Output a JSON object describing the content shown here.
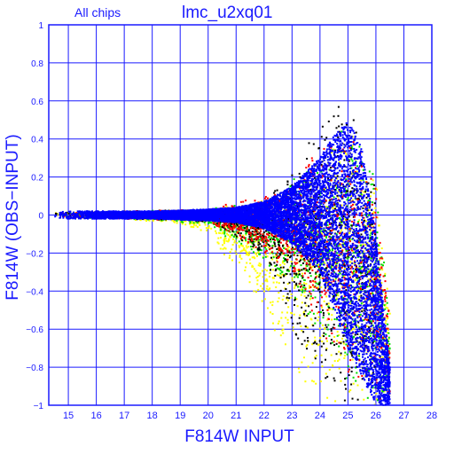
{
  "chart_data": {
    "type": "scatter",
    "title": "lmc_u2xq01",
    "subtitle": "All chips",
    "xlabel": "F814W INPUT",
    "ylabel": "F814W (OBS−INPUT)",
    "xlim": [
      14.3,
      28
    ],
    "ylim": [
      -1,
      1
    ],
    "x_ticks": [
      15,
      16,
      17,
      18,
      19,
      20,
      21,
      22,
      23,
      24,
      25,
      26,
      27,
      28
    ],
    "x_tick_labels": [
      "15",
      "16",
      "17",
      "18",
      "19",
      "20",
      "21",
      "22",
      "23",
      "24",
      "25",
      "26",
      "27",
      "28"
    ],
    "y_ticks": [
      -1,
      -0.8,
      -0.6,
      -0.4,
      -0.2,
      0,
      0.2,
      0.4,
      0.6,
      0.8,
      1
    ],
    "y_tick_labels": [
      "−1",
      "−0.8",
      "−0.6",
      "−0.4",
      "−0.2",
      "0",
      "0.2",
      "0.4",
      "0.6",
      "0.8",
      "1"
    ],
    "grid": true,
    "colors": {
      "axis": "#1a1aff",
      "grid": "#1a1aff",
      "text": "#1a1aff"
    },
    "series": [
      {
        "color": "#ffff00",
        "envelope": {
          "x": [
            14.5,
            17,
            19,
            20,
            21,
            22,
            23,
            24,
            25,
            26,
            26.5
          ],
          "upper": [
            0.015,
            0.02,
            0.025,
            0.04,
            0.06,
            0.1,
            0.18,
            0.35,
            0.55,
            0.2,
            -0.5
          ],
          "lower": [
            -0.015,
            -0.02,
            -0.05,
            -0.1,
            -0.3,
            -0.5,
            -0.8,
            -1.0,
            -1.0,
            -1.0,
            -1.0
          ]
        }
      },
      {
        "color": "#00dd00",
        "envelope": {
          "x": [
            14.5,
            17,
            20,
            22,
            24,
            25,
            26,
            26.5
          ],
          "upper": [
            0.015,
            0.02,
            0.03,
            0.08,
            0.3,
            0.5,
            0.2,
            -0.5
          ],
          "lower": [
            -0.015,
            -0.02,
            -0.05,
            -0.25,
            -0.6,
            -0.9,
            -1.0,
            -1.0
          ]
        }
      },
      {
        "color": "#000000",
        "envelope": {
          "x": [
            14.5,
            17,
            20,
            22,
            23,
            24,
            24.5,
            25,
            26
          ],
          "upper": [
            0.015,
            0.02,
            0.03,
            0.08,
            0.25,
            0.5,
            0.75,
            0.6,
            0.2
          ],
          "lower": [
            -0.015,
            -0.02,
            -0.04,
            -0.2,
            -0.6,
            -0.9,
            -1.0,
            -1.0,
            -1.0
          ]
        }
      },
      {
        "color": "#ff0000",
        "envelope": {
          "x": [
            14.5,
            20,
            23,
            24,
            25,
            26,
            26.5
          ],
          "upper": [
            0.015,
            0.03,
            0.15,
            0.4,
            0.5,
            0.2,
            -0.5
          ],
          "lower": [
            -0.015,
            -0.03,
            -0.3,
            -0.6,
            -0.9,
            -1.0,
            -1.0
          ]
        }
      },
      {
        "color": "#0000ff",
        "envelope": {
          "x": [
            14.5,
            16,
            18,
            20,
            21,
            22,
            23,
            24,
            24.5,
            25,
            25.5,
            26,
            26.5
          ],
          "upper": [
            0.02,
            0.02,
            0.02,
            0.03,
            0.04,
            0.07,
            0.15,
            0.3,
            0.42,
            0.5,
            0.35,
            -0.1,
            -0.8
          ],
          "lower": [
            -0.02,
            -0.02,
            -0.02,
            -0.03,
            -0.04,
            -0.07,
            -0.15,
            -0.3,
            -0.5,
            -0.7,
            -0.85,
            -1.0,
            -1.0
          ]
        }
      }
    ]
  }
}
